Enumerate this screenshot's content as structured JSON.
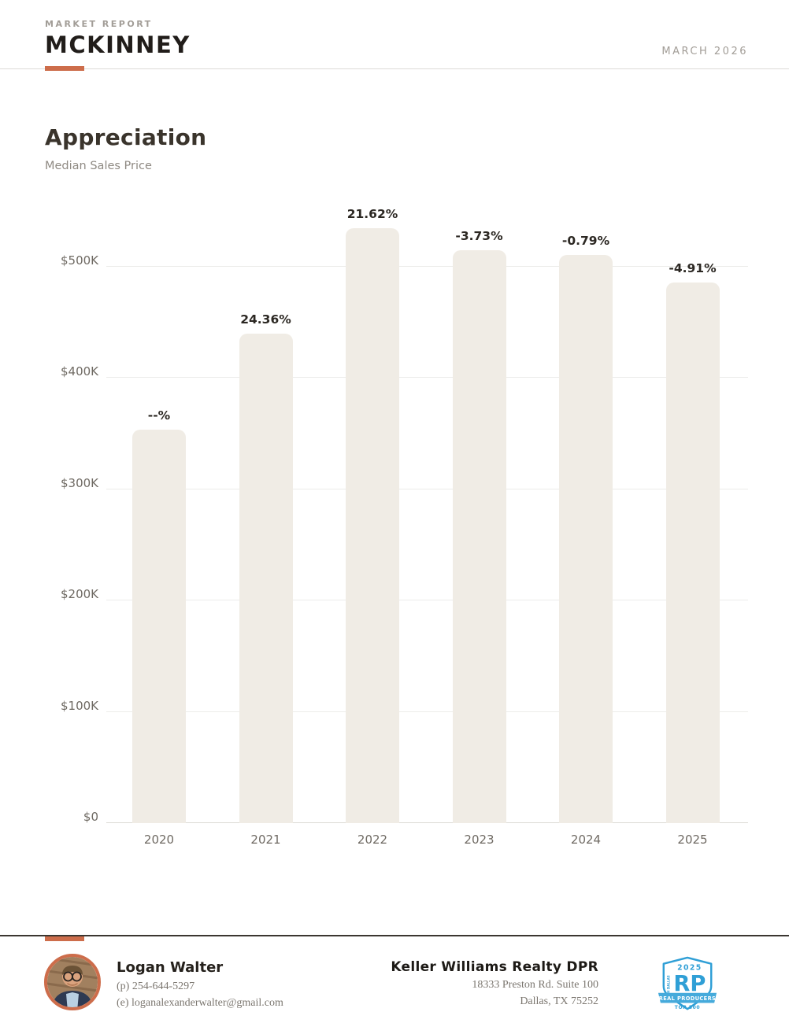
{
  "header": {
    "eyebrow": "MARKET REPORT",
    "city": "MCKINNEY",
    "date": "MARCH 2026"
  },
  "section": {
    "title": "Appreciation",
    "subtitle": "Median Sales Price"
  },
  "chart_data": {
    "type": "bar",
    "title": "Appreciation",
    "subtitle": "Median Sales Price",
    "categories": [
      "2020",
      "2021",
      "2022",
      "2023",
      "2024",
      "2025"
    ],
    "values_usd_thousands": [
      353.5,
      439.6,
      534.6,
      514.7,
      510.6,
      485.6
    ],
    "bar_labels": [
      "--%",
      "24.36%",
      "21.62%",
      "-3.73%",
      "-0.79%",
      "-4.91%"
    ],
    "ytick_values": [
      0,
      100,
      200,
      300,
      400,
      500
    ],
    "ytick_labels": [
      "$0",
      "$100K",
      "$200K",
      "$300K",
      "$400K",
      "$500K"
    ],
    "ylim": [
      0,
      535
    ],
    "grid": "horizontal",
    "legend": "none",
    "bar_color": "#f0ece5",
    "label_color": "#2c2823"
  },
  "footer": {
    "agent": {
      "name": "Logan Walter",
      "phone": "(p) 254-644-5297",
      "email": "(e) loganalexanderwalter@gmail.com"
    },
    "office": {
      "name": "Keller Williams Realty DPR",
      "address1": "18333 Preston Rd. Suite 100",
      "address2": "Dallas, TX 75252"
    },
    "badge": {
      "year": "2025",
      "initials": "RP",
      "ribbon": "REAL PRODUCERS",
      "tier": "TOP 500",
      "region": "NORTH DALLAS"
    }
  },
  "colors": {
    "accent_orange": "#cd6d4b",
    "badge_blue": "#2f9fd6",
    "bar_fill": "#f0ece5",
    "text_dark": "#211d1a",
    "text_gray": "#8f8a83"
  }
}
